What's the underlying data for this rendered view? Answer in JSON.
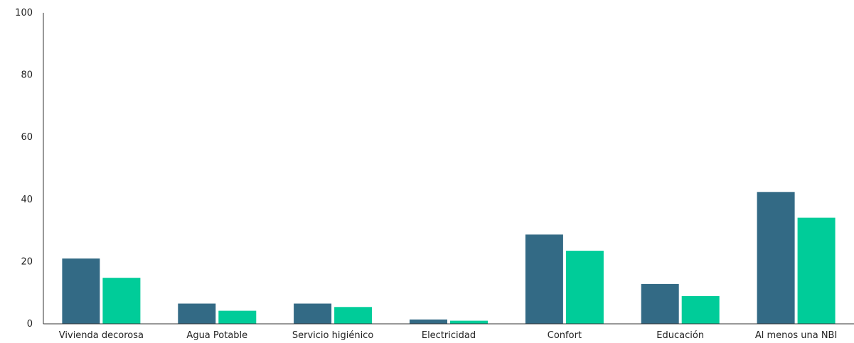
{
  "chart_data": {
    "type": "bar",
    "categories": [
      "Vivienda decorosa",
      "Agua Potable",
      "Servicio higiénico",
      "Electricidad",
      "Confort",
      "Educación",
      "Al menos una NBI"
    ],
    "series": [
      {
        "color": "#336a85",
        "values": [
          21.0,
          6.5,
          6.5,
          1.4,
          28.7,
          12.8,
          42.4
        ]
      },
      {
        "color": "#00cc99",
        "values": [
          14.8,
          4.2,
          5.4,
          1.0,
          23.5,
          8.9,
          34.1
        ]
      }
    ],
    "ylim": [
      0,
      100
    ],
    "yticks": [
      "0",
      "20",
      "40",
      "60",
      "80",
      "100"
    ],
    "xlabel": "",
    "ylabel": "",
    "title": "",
    "grid": false
  }
}
